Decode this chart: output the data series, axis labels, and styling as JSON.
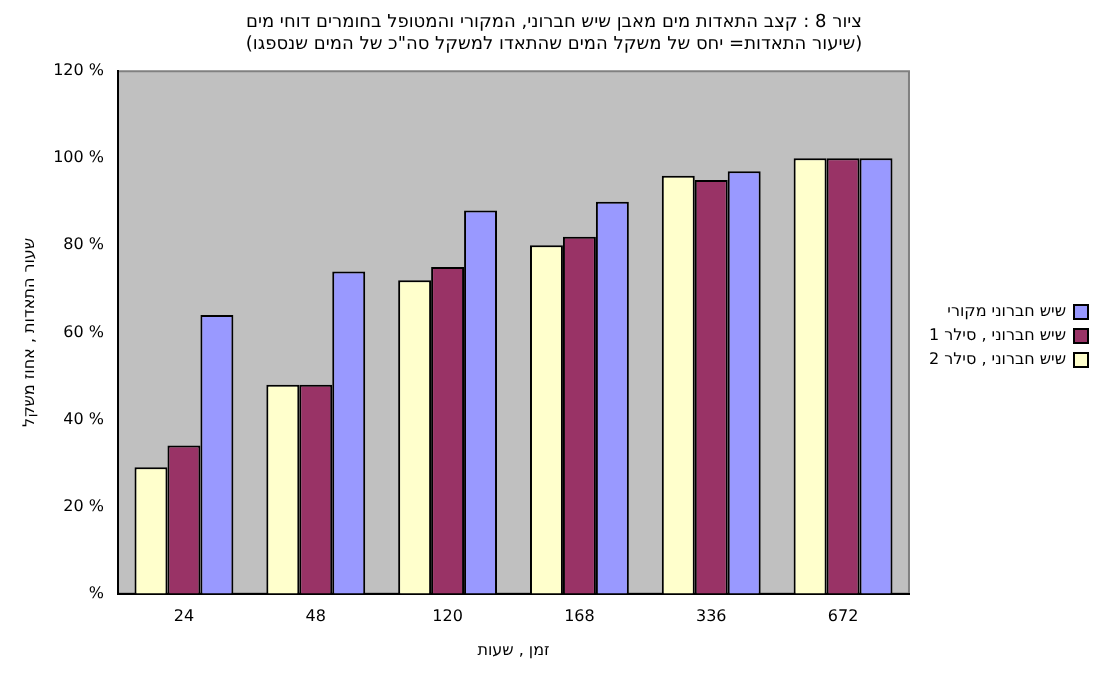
{
  "chart_data": {
    "type": "bar",
    "title": [
      "ציור 8 : קצב התאדות מים מאבן שיש חברוני, המקורי והמטופל בחומרים דוחי מים",
      "(שיעור התאדות= יחס של משקל המים שהתאדו למשקל סה\"כ של המים שנספגו)"
    ],
    "xlabel": "זמן , שעות",
    "ylabel": "שעור התאדות , אחוז משקל",
    "categories": [
      "24",
      "48",
      "120",
      "168",
      "336",
      "672"
    ],
    "series": [
      {
        "name": "שיש חברוני , סילר 2",
        "color": "#ffffcc",
        "values": [
          29,
          48,
          72,
          80,
          96,
          100
        ]
      },
      {
        "name": "שיש חברוני , סילר 1",
        "color": "#993366",
        "values": [
          34,
          48,
          75,
          82,
          95,
          100
        ]
      },
      {
        "name": "שיש חברוני מקורי",
        "color": "#9999ff",
        "values": [
          64,
          74,
          88,
          90,
          97,
          100
        ]
      }
    ],
    "ylim": [
      0,
      120
    ],
    "yticks": [
      {
        "value": 0,
        "label": "%"
      },
      {
        "value": 20,
        "label": "20 %"
      },
      {
        "value": 40,
        "label": "40 %"
      },
      {
        "value": 60,
        "label": "60 %"
      },
      {
        "value": 80,
        "label": "80 %"
      },
      {
        "value": 100,
        "label": "100 %"
      },
      {
        "value": 120,
        "label": "120 %"
      }
    ],
    "grid": false,
    "legend": "right"
  }
}
